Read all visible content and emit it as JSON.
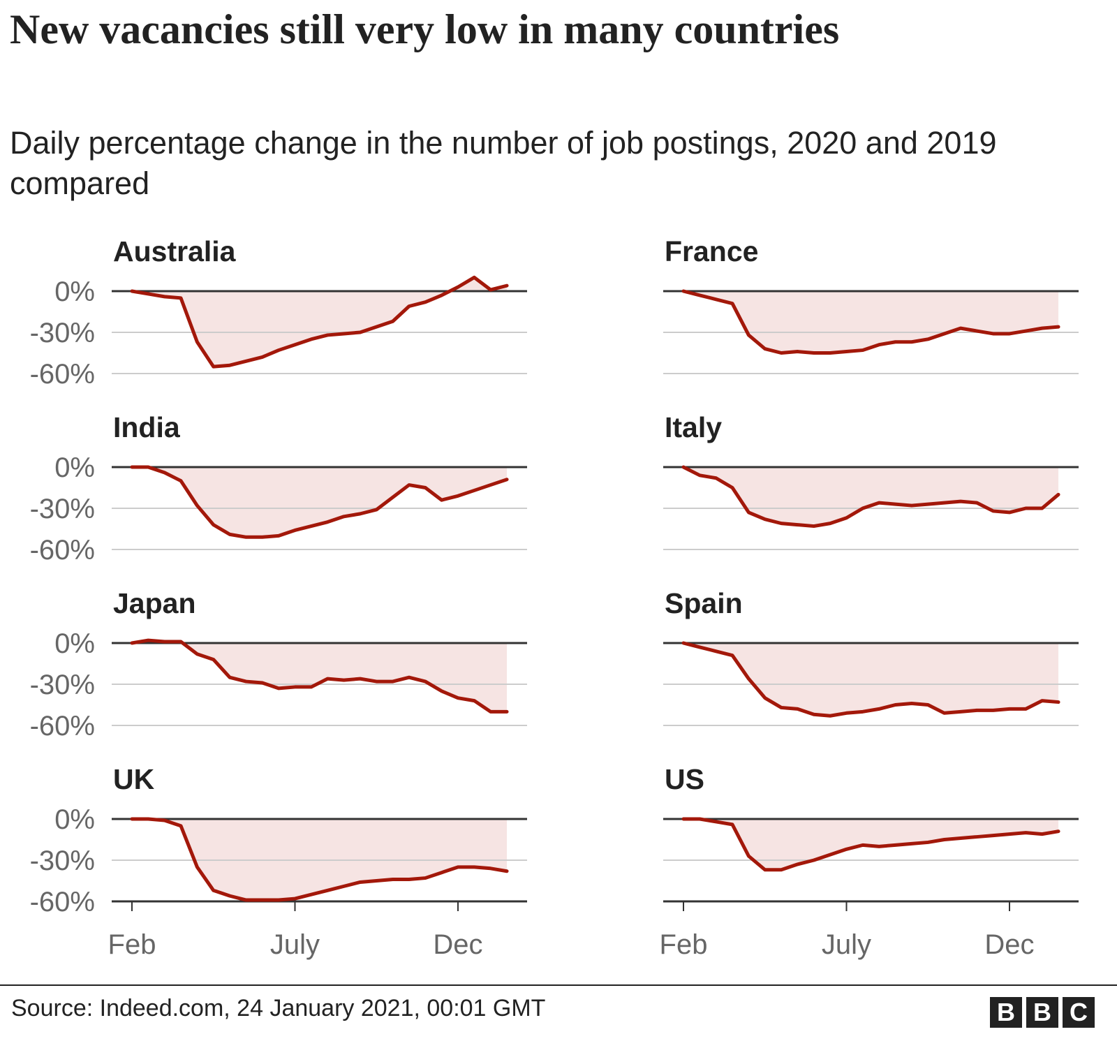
{
  "title": "New vacancies still very low in many countries",
  "subtitle": "Daily percentage change in the number of job postings, 2020 and 2019 compared",
  "source": "Source: Indeed.com, 24 January 2021, 00:01 GMT",
  "logo": [
    "B",
    "B",
    "C"
  ],
  "chart_data": [
    {
      "type": "line",
      "title": "Australia",
      "color": "#a3180a",
      "ylim": [
        -60,
        10
      ],
      "yticks": [
        {
          "value": 0,
          "label": "0%"
        },
        {
          "value": -30,
          "label": "-30%"
        },
        {
          "value": -60,
          "label": "-60%"
        }
      ],
      "values": [
        0,
        -2,
        -4,
        -5,
        -37,
        -55,
        -54,
        -51,
        -48,
        -43,
        -39,
        -35,
        -32,
        -31,
        -30,
        -26,
        -22,
        -11,
        -8,
        -3,
        3,
        10,
        1,
        4
      ]
    },
    {
      "type": "line",
      "title": "France",
      "color": "#a3180a",
      "ylim": [
        -60,
        10
      ],
      "yticks": [
        0,
        -30,
        -60
      ],
      "values": [
        0,
        -3,
        -6,
        -9,
        -32,
        -42,
        -45,
        -44,
        -45,
        -45,
        -44,
        -43,
        -39,
        -37,
        -37,
        -35,
        -31,
        -27,
        -29,
        -31,
        -31,
        -29,
        -27,
        -26
      ]
    },
    {
      "type": "line",
      "title": "India",
      "color": "#a3180a",
      "ylim": [
        -60,
        10
      ],
      "yticks": [
        {
          "value": 0,
          "label": "0%"
        },
        {
          "value": -30,
          "label": "-30%"
        },
        {
          "value": -60,
          "label": "-60%"
        }
      ],
      "values": [
        0,
        0,
        -4,
        -10,
        -28,
        -42,
        -49,
        -51,
        -51,
        -50,
        -46,
        -43,
        -40,
        -36,
        -34,
        -31,
        -22,
        -13,
        -15,
        -24,
        -21,
        -17,
        -13,
        -9
      ]
    },
    {
      "type": "line",
      "title": "Italy",
      "color": "#a3180a",
      "ylim": [
        -60,
        10
      ],
      "yticks": [
        0,
        -30,
        -60
      ],
      "values": [
        0,
        -6,
        -8,
        -15,
        -33,
        -38,
        -41,
        -42,
        -43,
        -41,
        -37,
        -30,
        -26,
        -27,
        -28,
        -27,
        -26,
        -25,
        -26,
        -32,
        -33,
        -30,
        -30,
        -20
      ]
    },
    {
      "type": "line",
      "title": "Japan",
      "color": "#a3180a",
      "ylim": [
        -60,
        10
      ],
      "yticks": [
        {
          "value": 0,
          "label": "0%"
        },
        {
          "value": -30,
          "label": "-30%"
        },
        {
          "value": -60,
          "label": "-60%"
        }
      ],
      "values": [
        0,
        2,
        1,
        1,
        -8,
        -12,
        -25,
        -28,
        -29,
        -33,
        -32,
        -32,
        -26,
        -27,
        -26,
        -28,
        -28,
        -25,
        -28,
        -35,
        -40,
        -42,
        -50,
        -50
      ]
    },
    {
      "type": "line",
      "title": "Spain",
      "color": "#a3180a",
      "ylim": [
        -60,
        10
      ],
      "yticks": [
        0,
        -30,
        -60
      ],
      "values": [
        0,
        -3,
        -6,
        -9,
        -26,
        -40,
        -47,
        -48,
        -52,
        -53,
        -51,
        -50,
        -48,
        -45,
        -44,
        -45,
        -51,
        -50,
        -49,
        -49,
        -48,
        -48,
        -42,
        -43
      ]
    },
    {
      "type": "line",
      "title": "UK",
      "color": "#a3180a",
      "ylim": [
        -60,
        10
      ],
      "yticks": [
        {
          "value": 0,
          "label": "0%"
        },
        {
          "value": -30,
          "label": "-30%"
        },
        {
          "value": -60,
          "label": "-60%"
        }
      ],
      "categories": [
        "Feb",
        null,
        null,
        null,
        null,
        null,
        null,
        null,
        null,
        null,
        "July",
        null,
        null,
        null,
        null,
        null,
        null,
        null,
        null,
        null,
        "Dec",
        null,
        null,
        null
      ],
      "values": [
        0,
        0,
        -1,
        -5,
        -35,
        -52,
        -56,
        -59,
        -59,
        -59,
        -58,
        -55,
        -52,
        -49,
        -46,
        -45,
        -44,
        -44,
        -43,
        -39,
        -35,
        -35,
        -36,
        -38
      ]
    },
    {
      "type": "line",
      "title": "US",
      "color": "#a3180a",
      "ylim": [
        -60,
        10
      ],
      "yticks": [
        0,
        -30,
        -60
      ],
      "categories": [
        "Feb",
        null,
        null,
        null,
        null,
        null,
        null,
        null,
        null,
        null,
        "July",
        null,
        null,
        null,
        null,
        null,
        null,
        null,
        null,
        null,
        "Dec",
        null,
        null,
        null
      ],
      "values": [
        0,
        0,
        -2,
        -4,
        -27,
        -37,
        -37,
        -33,
        -30,
        -26,
        -22,
        -19,
        -20,
        -19,
        -18,
        -17,
        -15,
        -14,
        -13,
        -12,
        -11,
        -10,
        -11,
        -9
      ]
    }
  ]
}
